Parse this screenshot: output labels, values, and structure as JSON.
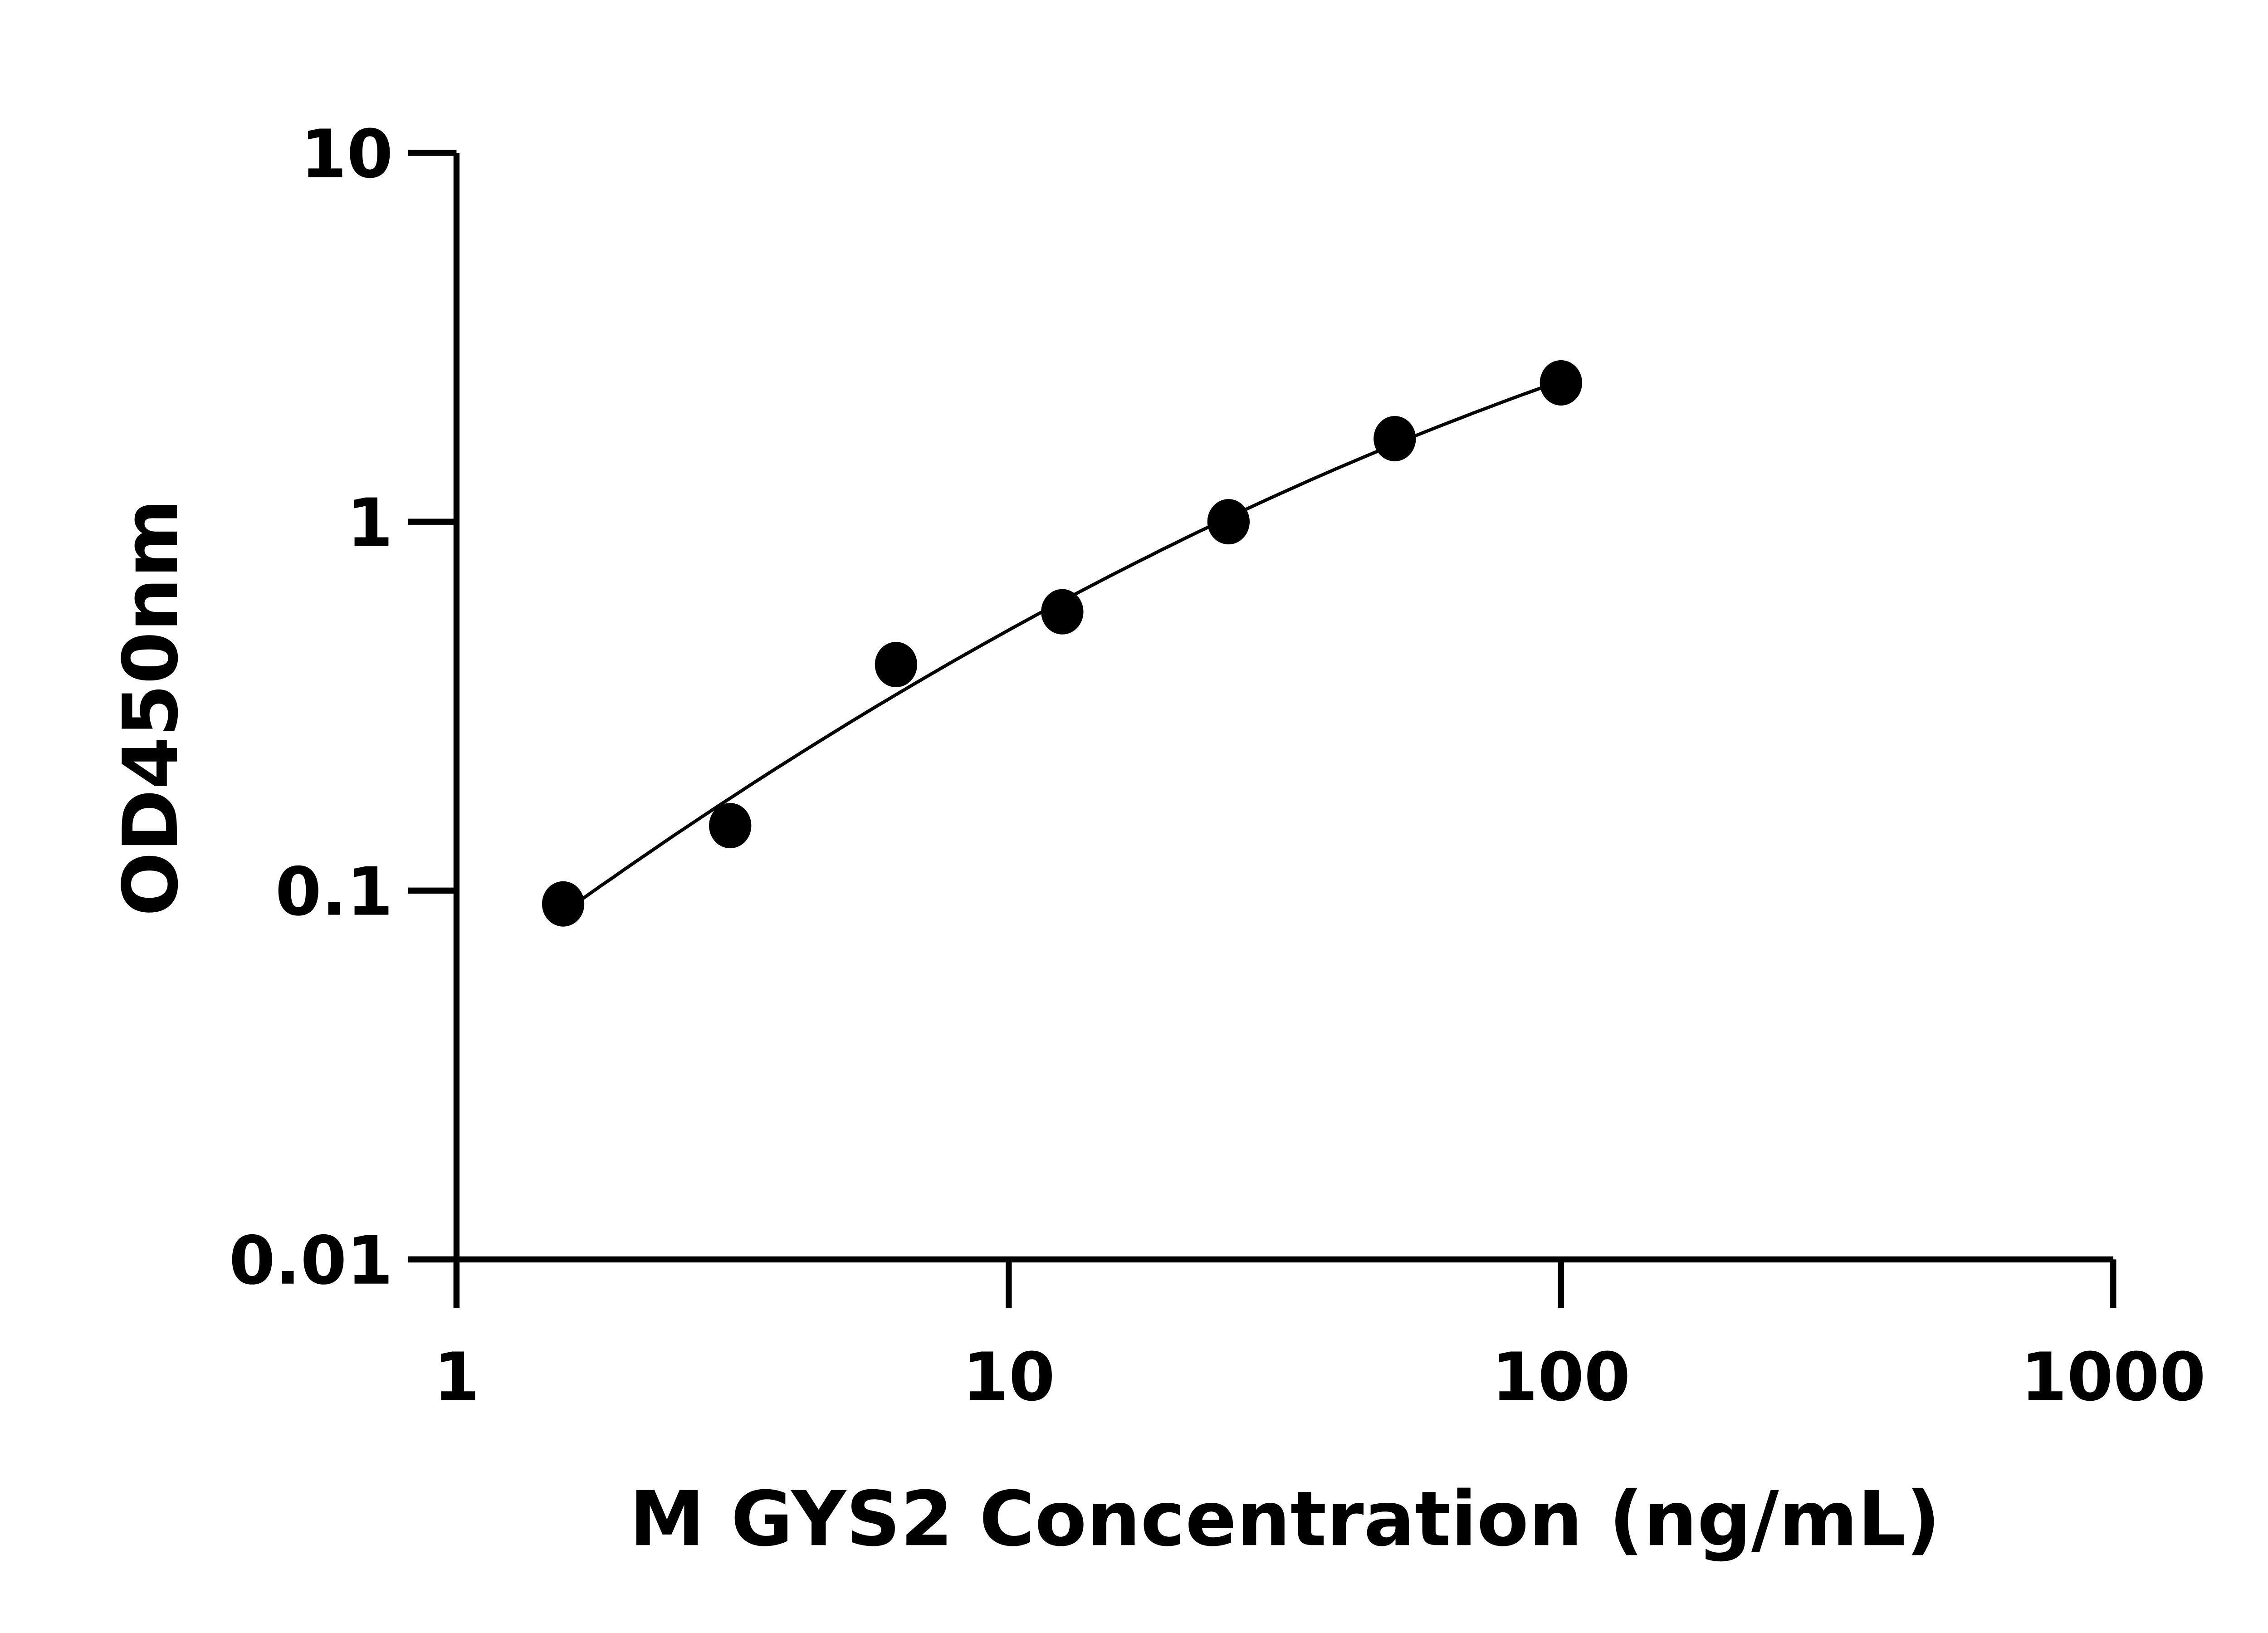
{
  "chart_data": {
    "type": "scatter",
    "title": "",
    "xlabel": "M GYS2 Concentration (ng/mL)",
    "ylabel": "OD450nm",
    "xscale": "log",
    "yscale": "log",
    "xlim": [
      1,
      1000
    ],
    "ylim": [
      0.01,
      10
    ],
    "xticks": [
      "1",
      "10",
      "100",
      "1000"
    ],
    "yticks": [
      "0.01",
      "0.1",
      "1",
      "10"
    ],
    "grid": false,
    "legend": "none",
    "fit_curve": true,
    "marker_color": "#000000",
    "x": [
      1.56,
      3.13,
      6.25,
      12.5,
      25,
      50,
      100
    ],
    "y": [
      0.092,
      0.15,
      0.41,
      0.57,
      1.0,
      1.68,
      2.38
    ]
  }
}
